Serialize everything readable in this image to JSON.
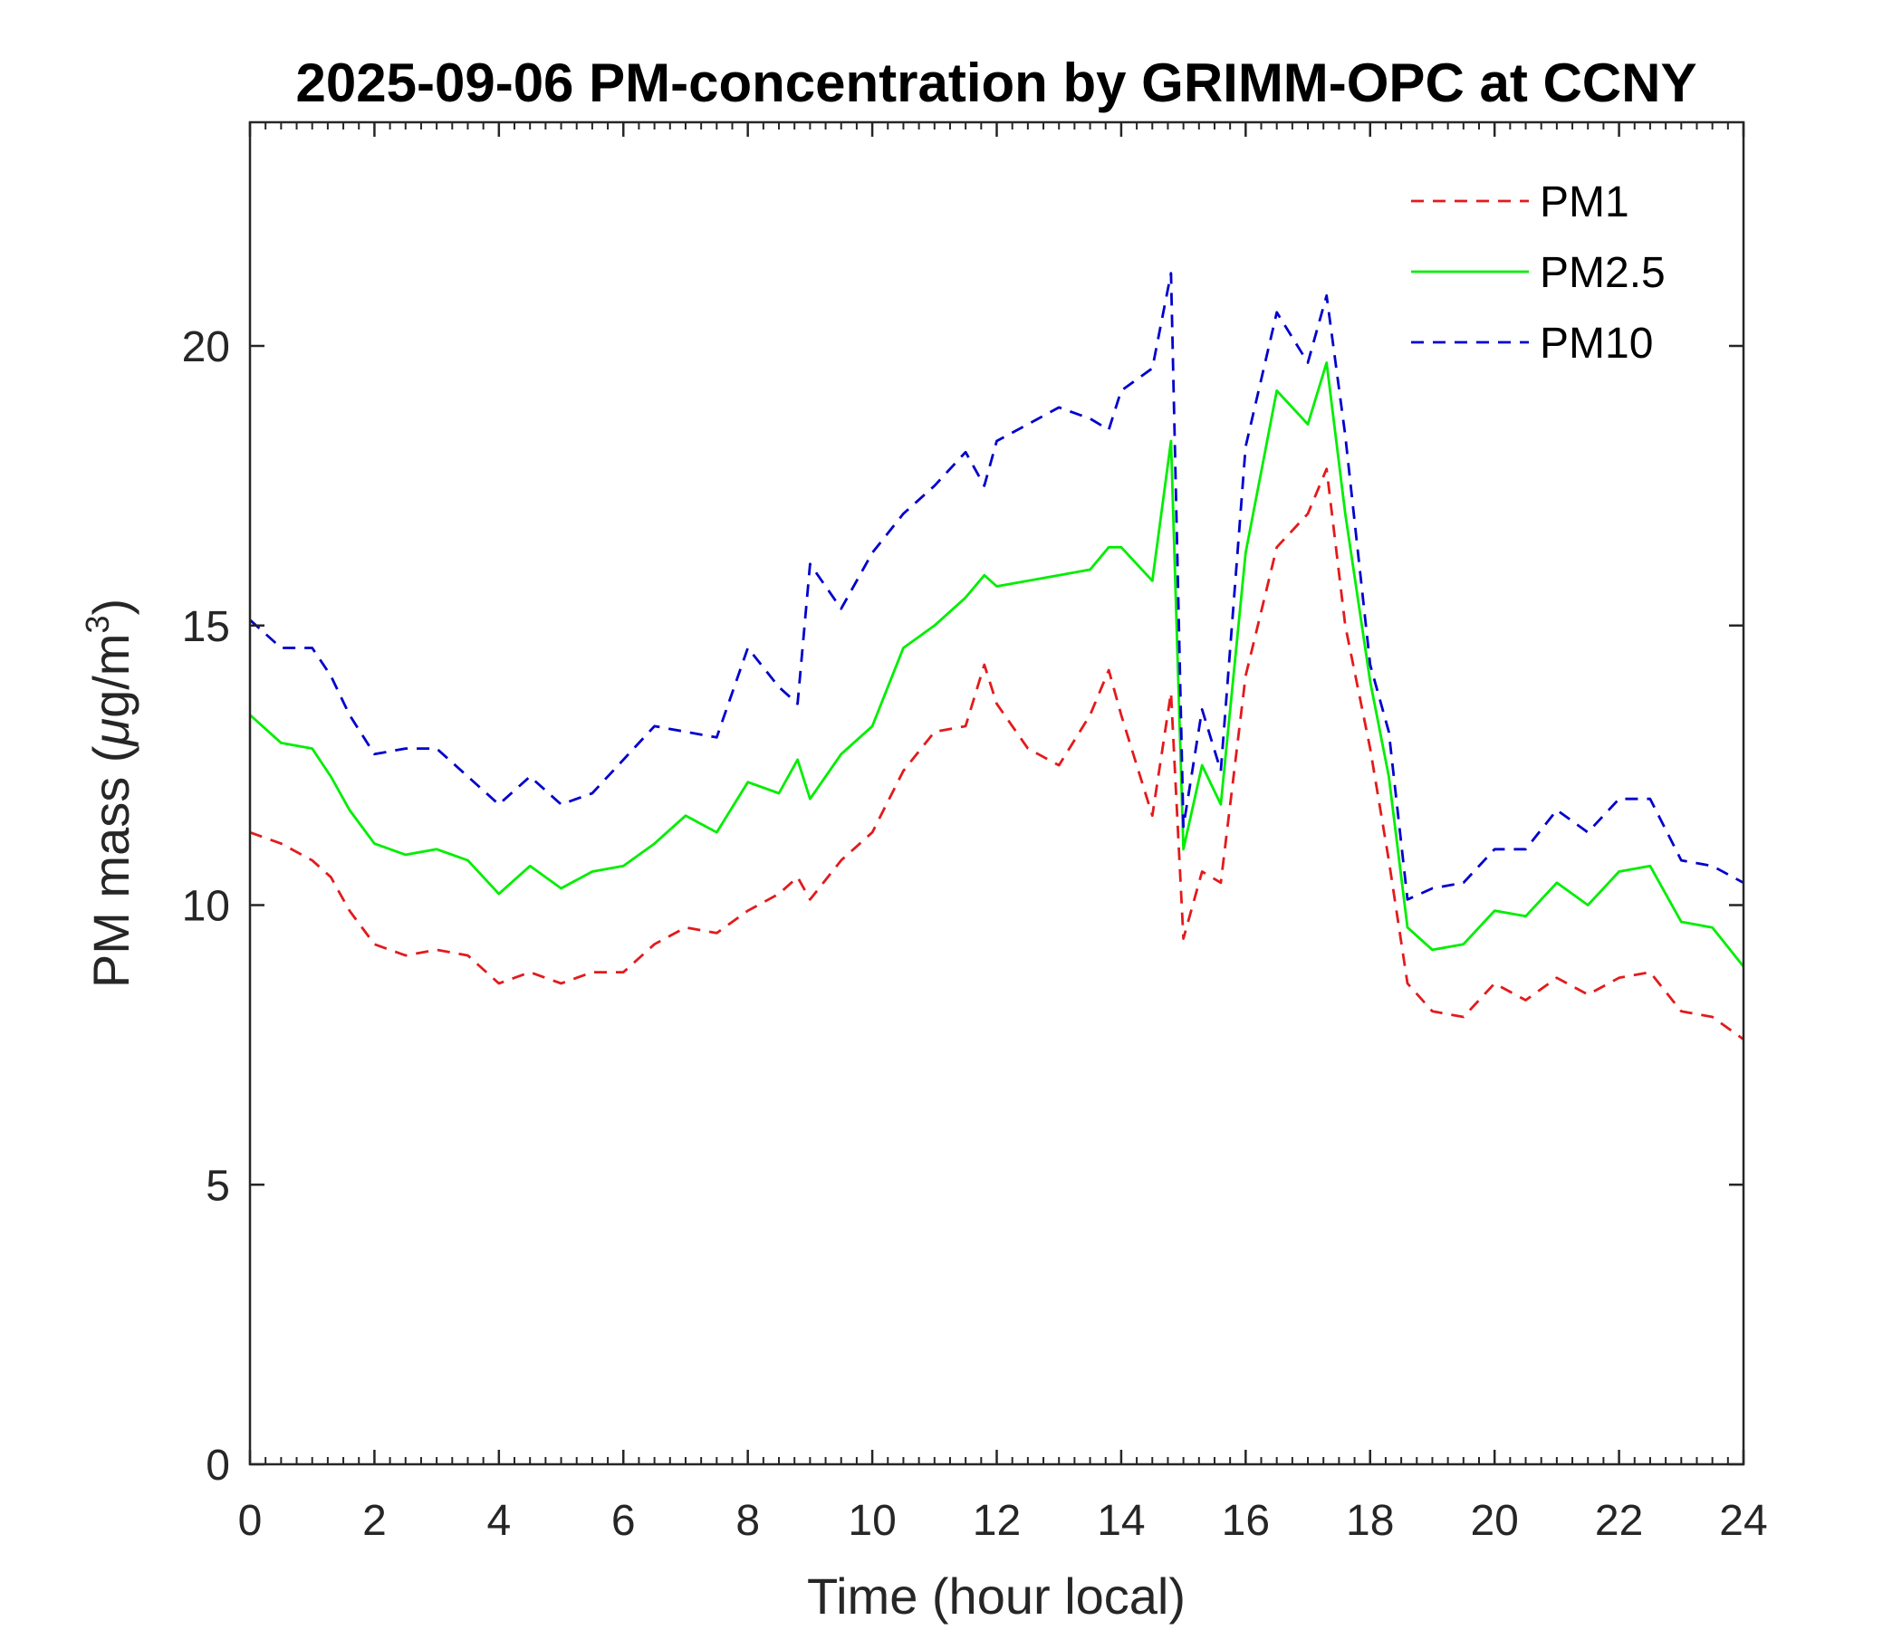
{
  "chart_data": {
    "type": "line",
    "title": "2025-09-06 PM-concentration by GRIMM-OPC at CCNY",
    "xlabel": "Time (hour local)",
    "ylabel_prefix": "PM mass (",
    "ylabel_mu": "μ",
    "ylabel_unit": "g/m",
    "ylabel_sup": "3",
    "ylabel_suffix": ")",
    "xlim": [
      0,
      24
    ],
    "ylim": [
      0,
      24
    ],
    "xticks": [
      "0",
      "2",
      "4",
      "6",
      "8",
      "10",
      "12",
      "14",
      "16",
      "18",
      "20",
      "22",
      "24"
    ],
    "yticks": [
      "0",
      "5",
      "10",
      "15",
      "20"
    ],
    "grid": false,
    "legend_position": "top-right",
    "x": [
      0,
      0.5,
      1,
      1.3,
      1.6,
      2,
      2.5,
      3,
      3.5,
      4,
      4.5,
      5,
      5.5,
      6,
      6.5,
      7,
      7.5,
      8,
      8.5,
      8.8,
      9,
      9.5,
      10,
      10.5,
      11,
      11.5,
      11.8,
      12,
      12.5,
      13,
      13.5,
      13.8,
      14,
      14.5,
      14.8,
      15,
      15.3,
      15.6,
      16,
      16.5,
      17,
      17.3,
      17.6,
      18,
      18.3,
      18.6,
      19,
      19.5,
      20,
      20.5,
      21,
      21.5,
      22,
      22.5,
      23,
      23.5,
      24
    ],
    "series": [
      {
        "name": "PM1",
        "color": "#e31a1c",
        "dash": "14,10",
        "values": [
          11.3,
          11.1,
          10.8,
          10.5,
          9.9,
          9.3,
          9.1,
          9.2,
          9.1,
          8.6,
          8.8,
          8.6,
          8.8,
          8.8,
          9.3,
          9.6,
          9.5,
          9.9,
          10.2,
          10.5,
          10.1,
          10.8,
          11.3,
          12.4,
          13.1,
          13.2,
          14.3,
          13.6,
          12.8,
          12.5,
          13.4,
          14.2,
          13.4,
          11.6,
          13.8,
          9.4,
          10.6,
          10.4,
          14.1,
          16.4,
          17.0,
          17.8,
          15.0,
          12.8,
          10.8,
          8.6,
          8.1,
          8.0,
          8.6,
          8.3,
          8.7,
          8.4,
          8.7,
          8.8,
          8.1,
          8.0,
          7.6
        ]
      },
      {
        "name": "PM2.5",
        "color": "#00ee00",
        "dash": "",
        "values": [
          13.4,
          12.9,
          12.8,
          12.3,
          11.7,
          11.1,
          10.9,
          11.0,
          10.8,
          10.2,
          10.7,
          10.3,
          10.6,
          10.7,
          11.1,
          11.6,
          11.3,
          12.2,
          12.0,
          12.6,
          11.9,
          12.7,
          13.2,
          14.6,
          15.0,
          15.5,
          15.9,
          15.7,
          15.8,
          15.9,
          16.0,
          16.4,
          16.4,
          15.8,
          18.3,
          11.0,
          12.5,
          11.8,
          16.3,
          19.2,
          18.6,
          19.7,
          17.0,
          14.0,
          12.3,
          9.6,
          9.2,
          9.3,
          9.9,
          9.8,
          10.4,
          10.0,
          10.6,
          10.7,
          9.7,
          9.6,
          8.9
        ]
      },
      {
        "name": "PM10",
        "color": "#0000cd",
        "dash": "14,10",
        "values": [
          15.1,
          14.6,
          14.6,
          14.1,
          13.4,
          12.7,
          12.8,
          12.8,
          12.3,
          11.8,
          12.3,
          11.8,
          12.0,
          12.6,
          13.2,
          13.1,
          13.0,
          14.6,
          13.9,
          13.6,
          16.1,
          15.3,
          16.3,
          17.0,
          17.5,
          18.1,
          17.5,
          18.3,
          18.6,
          18.9,
          18.7,
          18.5,
          19.2,
          19.6,
          21.3,
          11.4,
          13.5,
          12.4,
          18.2,
          20.6,
          19.7,
          20.9,
          18.4,
          14.3,
          13.1,
          10.1,
          10.3,
          10.4,
          11.0,
          11.0,
          11.7,
          11.3,
          11.9,
          11.9,
          10.8,
          10.7,
          10.4
        ]
      }
    ]
  }
}
